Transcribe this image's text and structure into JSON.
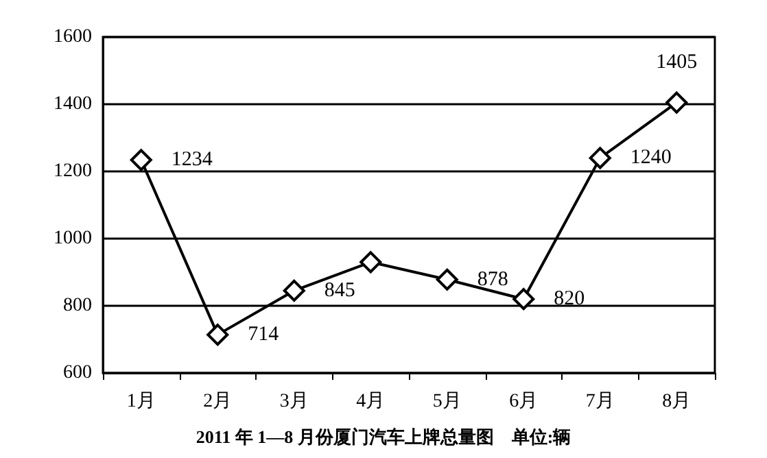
{
  "chart_data": {
    "type": "line",
    "title": "2011 年 1—8 月份厦门汽车上牌总量图　单位:辆",
    "categories": [
      "1月",
      "2月",
      "3月",
      "4月",
      "5月",
      "6月",
      "7月",
      "8月"
    ],
    "values": [
      1234,
      714,
      845,
      930,
      878,
      820,
      1240,
      1405
    ],
    "value_labels": [
      "1234",
      "714",
      "845",
      null,
      "878",
      "820",
      "1240",
      "1405"
    ],
    "color": "#000000",
    "ylim": [
      600,
      1600
    ],
    "yticks": [
      600,
      800,
      1000,
      1200,
      1400,
      1600
    ],
    "grid": "y",
    "marker": "diamond",
    "line_style": "solid"
  }
}
